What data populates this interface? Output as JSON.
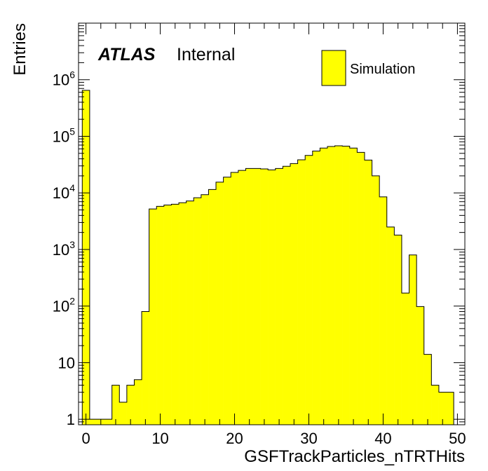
{
  "chart_data": {
    "type": "bar",
    "style": "histogram",
    "xlabel": "GSFTrackParticles_nTRTHits",
    "ylabel": "Entries",
    "xlim": [
      -1,
      51
    ],
    "ylim": [
      0.8,
      10000000
    ],
    "yscale": "log",
    "xticks": [
      0,
      10,
      20,
      30,
      40,
      50
    ],
    "xtick_labels": [
      "0",
      "10",
      "20",
      "30",
      "40",
      "50"
    ],
    "yticks": [
      {
        "value": 1,
        "base": "1",
        "exp": ""
      },
      {
        "value": 10,
        "base": "10",
        "exp": ""
      },
      {
        "value": 100,
        "base": "10",
        "exp": "2"
      },
      {
        "value": 1000,
        "base": "10",
        "exp": "3"
      },
      {
        "value": 10000,
        "base": "10",
        "exp": "4"
      },
      {
        "value": 100000,
        "base": "10",
        "exp": "5"
      },
      {
        "value": 1000000,
        "base": "10",
        "exp": "6"
      }
    ],
    "bin_width": 1,
    "bin_start": -0.5,
    "fill_color": "#ffff00",
    "line_color": "#000000",
    "values": [
      650000,
      1,
      1,
      1,
      4,
      2,
      4,
      5,
      80,
      5200,
      5800,
      6100,
      6300,
      6700,
      7200,
      8200,
      9300,
      11500,
      15500,
      19000,
      23000,
      25000,
      27000,
      27000,
      26500,
      25500,
      27000,
      29500,
      33000,
      38500,
      46000,
      55000,
      62000,
      66000,
      68000,
      67000,
      62000,
      52000,
      38000,
      20000,
      8500,
      2500,
      1800,
      170,
      800,
      98,
      14,
      4,
      3,
      3
    ],
    "legend": {
      "position": "top-right",
      "entries": [
        {
          "label": "Simulation",
          "color": "#ffff00"
        }
      ]
    },
    "annotations": {
      "bold": "ATLAS",
      "normal": "Internal"
    }
  }
}
